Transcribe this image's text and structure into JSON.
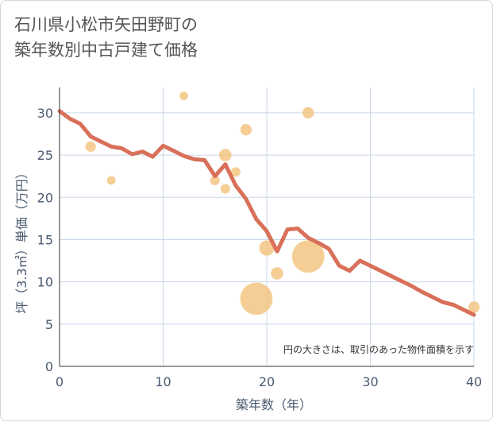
{
  "title": "石川県小松市矢田野町の\n築年数別中古戸建て価格",
  "note": "円の大きさは、取引のあった物件面積を示す",
  "colors": {
    "line": "#d9705a",
    "bubble": "#f2c27a",
    "grid": "#c9d8ea",
    "axis": "#333333",
    "text": "#4a5a70"
  },
  "chart_data": {
    "type": "scatter",
    "xlabel": "築年数（年）",
    "ylabel": "坪（3.3㎡）単価（万円）",
    "xlim": [
      0,
      40
    ],
    "ylim": [
      0,
      33
    ],
    "xticks": [
      0,
      10,
      20,
      30,
      40
    ],
    "yticks": [
      0,
      5,
      10,
      15,
      20,
      25,
      30
    ],
    "grid": true,
    "line": [
      [
        0,
        30.2
      ],
      [
        1,
        29.3
      ],
      [
        2,
        28.7
      ],
      [
        3,
        27.2
      ],
      [
        4,
        26.6
      ],
      [
        5,
        26.0
      ],
      [
        6,
        25.8
      ],
      [
        7,
        25.1
      ],
      [
        8,
        25.4
      ],
      [
        9,
        24.8
      ],
      [
        10,
        26.1
      ],
      [
        11,
        25.5
      ],
      [
        12,
        24.9
      ],
      [
        13,
        24.5
      ],
      [
        14,
        24.4
      ],
      [
        15,
        22.5
      ],
      [
        16,
        23.9
      ],
      [
        17,
        21.4
      ],
      [
        18,
        19.8
      ],
      [
        19,
        17.4
      ],
      [
        20,
        16.0
      ],
      [
        21,
        13.6
      ],
      [
        22,
        16.2
      ],
      [
        23,
        16.3
      ],
      [
        24,
        15.2
      ],
      [
        25,
        14.6
      ],
      [
        26,
        13.9
      ],
      [
        27,
        11.9
      ],
      [
        28,
        11.3
      ],
      [
        29,
        12.5
      ],
      [
        30,
        11.9
      ],
      [
        31,
        11.3
      ],
      [
        32,
        10.7
      ],
      [
        33,
        10.1
      ],
      [
        34,
        9.5
      ],
      [
        35,
        8.8
      ],
      [
        36,
        8.2
      ],
      [
        37,
        7.6
      ],
      [
        38,
        7.3
      ],
      [
        39,
        6.7
      ],
      [
        40,
        6.1
      ]
    ],
    "bubbles": [
      {
        "x": 3,
        "y": 26,
        "size": 1.1
      },
      {
        "x": 5,
        "y": 22,
        "size": 0.9
      },
      {
        "x": 12,
        "y": 32,
        "size": 0.9
      },
      {
        "x": 15,
        "y": 22,
        "size": 1.0
      },
      {
        "x": 16,
        "y": 25,
        "size": 1.3
      },
      {
        "x": 16,
        "y": 21,
        "size": 1.0
      },
      {
        "x": 17,
        "y": 23,
        "size": 1.0
      },
      {
        "x": 18,
        "y": 28,
        "size": 1.2
      },
      {
        "x": 19,
        "y": 8,
        "size": 3.4
      },
      {
        "x": 20,
        "y": 14,
        "size": 1.6
      },
      {
        "x": 21,
        "y": 11,
        "size": 1.3
      },
      {
        "x": 24,
        "y": 30,
        "size": 1.2
      },
      {
        "x": 24,
        "y": 13,
        "size": 3.4
      },
      {
        "x": 40,
        "y": 7,
        "size": 1.2
      }
    ]
  }
}
